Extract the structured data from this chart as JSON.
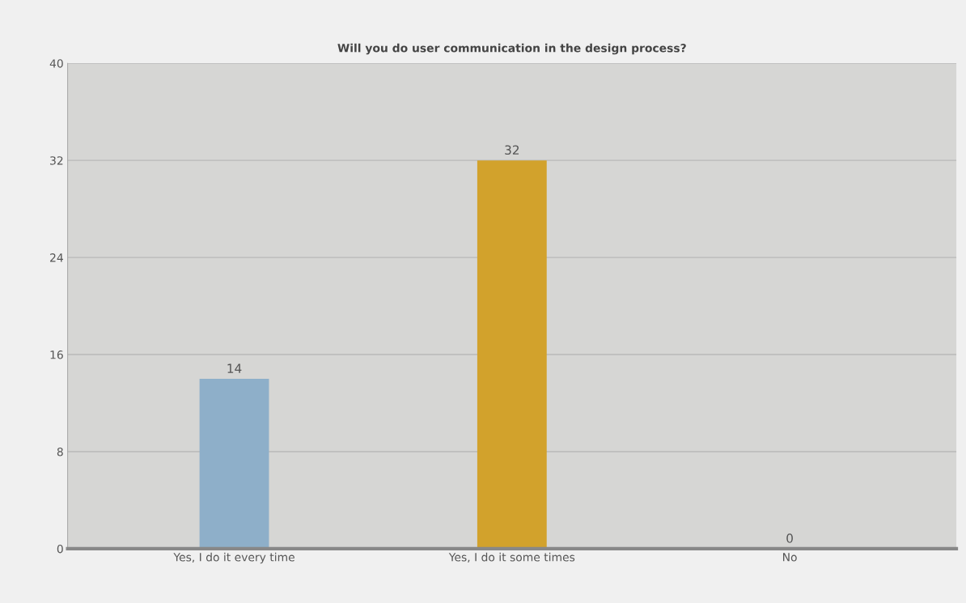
{
  "chart_data": {
    "type": "bar",
    "title": "Will you do user communication in the design process?",
    "categories": [
      "Yes, I do it every time",
      "Yes, I do it some times",
      "No"
    ],
    "values": [
      14,
      32,
      0
    ],
    "colors": [
      "#8eafc9",
      "#d2a22c",
      "#8cc43c"
    ],
    "ylim": [
      0,
      40
    ],
    "yticks": [
      0,
      8,
      16,
      24,
      32,
      40
    ],
    "grid": "y",
    "data_labels": true
  }
}
